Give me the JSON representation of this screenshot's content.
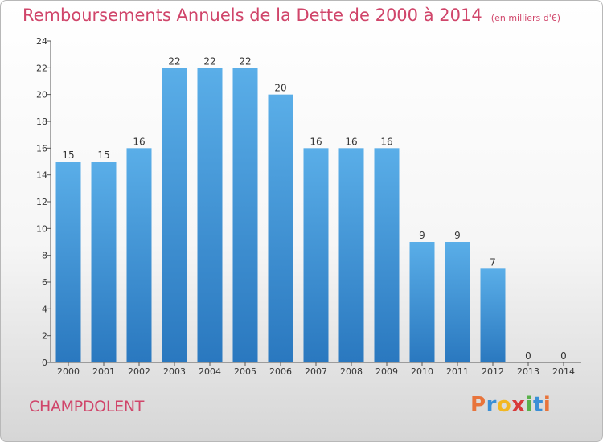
{
  "title": "Remboursements Annuels de la Dette de 2000 à 2014",
  "subtitle": "(en milliers d'€)",
  "commune": "CHAMPDOLENT",
  "logo": {
    "letters": [
      "P",
      "r",
      "o",
      "x",
      "i",
      "t",
      "i"
    ],
    "colors": [
      "#e8743b",
      "#3a8fd6",
      "#f2b722",
      "#d83a3a",
      "#59b14a",
      "#3a8fd6",
      "#e8743b"
    ]
  },
  "colors": {
    "bar_top": "#5aaee8",
    "bar_bottom": "#2a78bf",
    "accent": "#d0456a"
  },
  "chart_data": {
    "type": "bar",
    "title": "Remboursements Annuels de la Dette de 2000 à 2014",
    "subtitle": "(en milliers d'€)",
    "categories": [
      "2000",
      "2001",
      "2002",
      "2003",
      "2004",
      "2005",
      "2006",
      "2007",
      "2008",
      "2009",
      "2010",
      "2011",
      "2012",
      "2013",
      "2014"
    ],
    "values": [
      15,
      15,
      16,
      22,
      22,
      22,
      20,
      16,
      16,
      16,
      9,
      9,
      7,
      0,
      0
    ],
    "ylim": [
      0,
      24
    ],
    "yticks": [
      0,
      2,
      4,
      6,
      8,
      10,
      12,
      14,
      16,
      18,
      20,
      22,
      24
    ],
    "grid": false,
    "legend": "none"
  }
}
